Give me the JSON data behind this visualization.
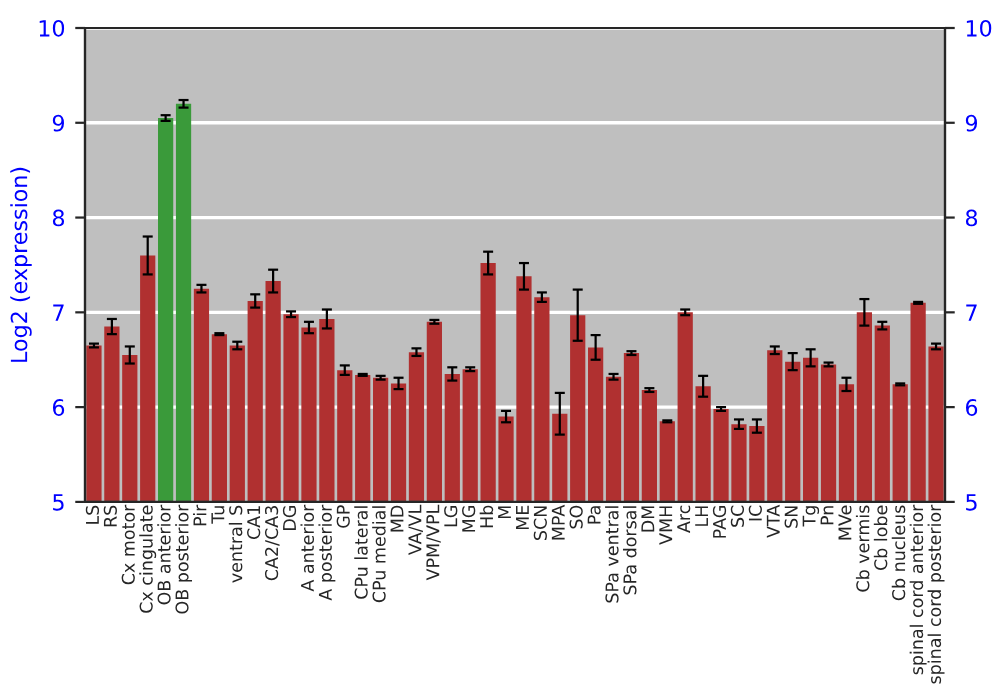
{
  "chart_data": {
    "type": "bar",
    "ylabel": "Log2 (expression)",
    "categories": [
      "LS",
      "RS",
      "Cx motor",
      "Cx cingulate",
      "OB anterior",
      "OB posterior",
      "Pir",
      "Tu",
      "ventral S",
      "CA1",
      "CA2/CA3",
      "DG",
      "A anterior",
      "A posterior",
      "GP",
      "CPu lateral",
      "CPu medial",
      "MD",
      "VA/VL",
      "VPM/VPL",
      "LG",
      "MG",
      "Hb",
      "M",
      "ME",
      "SCN",
      "MPA",
      "SO",
      "Pa",
      "SPa ventral",
      "SPa dorsal",
      "DM",
      "VMH",
      "Arc",
      "LH",
      "PAG",
      "SC",
      "IC",
      "VTA",
      "SN",
      "Tg",
      "Pn",
      "MVe",
      "Cb vermis",
      "Cb lobe",
      "Cb nucleus",
      "spinal cord anterior",
      "spinal cord posterior"
    ],
    "values": [
      6.65,
      6.85,
      6.55,
      7.6,
      9.05,
      9.2,
      7.25,
      6.77,
      6.65,
      7.12,
      7.33,
      6.98,
      6.84,
      6.93,
      6.39,
      6.34,
      6.31,
      6.25,
      6.58,
      6.9,
      6.35,
      6.4,
      7.52,
      5.9,
      7.38,
      7.16,
      5.93,
      6.97,
      6.63,
      6.32,
      6.57,
      6.18,
      5.85,
      7.0,
      6.22,
      5.98,
      5.82,
      5.8,
      6.6,
      6.48,
      6.52,
      6.45,
      6.24,
      7.0,
      6.86,
      6.24,
      7.1,
      6.64
    ],
    "errors": [
      0.02,
      0.08,
      0.09,
      0.2,
      0.03,
      0.04,
      0.04,
      0.01,
      0.04,
      0.07,
      0.12,
      0.03,
      0.06,
      0.1,
      0.05,
      0.01,
      0.02,
      0.06,
      0.04,
      0.02,
      0.07,
      0.02,
      0.12,
      0.06,
      0.14,
      0.05,
      0.22,
      0.27,
      0.13,
      0.03,
      0.02,
      0.02,
      0.01,
      0.03,
      0.11,
      0.02,
      0.05,
      0.07,
      0.04,
      0.09,
      0.09,
      0.02,
      0.07,
      0.14,
      0.04,
      0.01,
      0.01,
      0.03
    ],
    "colors": [
      "#b03030",
      "#b03030",
      "#b03030",
      "#b03030",
      "#3a9a3a",
      "#3a9a3a",
      "#b03030",
      "#b03030",
      "#b03030",
      "#b03030",
      "#b03030",
      "#b03030",
      "#b03030",
      "#b03030",
      "#b03030",
      "#b03030",
      "#b03030",
      "#b03030",
      "#b03030",
      "#b03030",
      "#b03030",
      "#b03030",
      "#b03030",
      "#b03030",
      "#b03030",
      "#b03030",
      "#b03030",
      "#b03030",
      "#b03030",
      "#b03030",
      "#b03030",
      "#b03030",
      "#b03030",
      "#b03030",
      "#b03030",
      "#b03030",
      "#b03030",
      "#b03030",
      "#b03030",
      "#b03030",
      "#b03030",
      "#b03030",
      "#b03030",
      "#b03030",
      "#b03030",
      "#b03030",
      "#b03030",
      "#b03030"
    ],
    "ylim": [
      5,
      10
    ],
    "yticks": [
      5,
      6,
      7,
      8,
      9,
      10
    ],
    "y2lim": [
      5,
      10
    ],
    "y2ticks": [
      5,
      6,
      7,
      8,
      9,
      10
    ],
    "grid": "y",
    "legend": false
  }
}
